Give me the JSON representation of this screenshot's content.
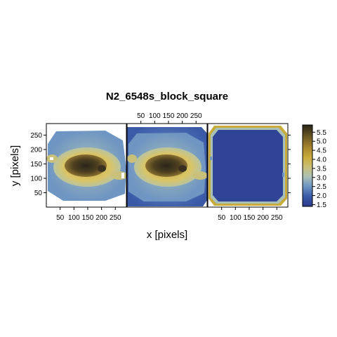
{
  "chart_data": {
    "type": "heatmap",
    "title": "N2_6548s_block_square",
    "xlabel": "x [pixels]",
    "ylabel": "y [pixels]",
    "xlim": [
      0,
      290
    ],
    "ylim": [
      0,
      290
    ],
    "xticks": [
      50,
      100,
      150,
      200,
      250
    ],
    "xtick_labels": [
      "50",
      "100",
      "150",
      "200",
      "250"
    ],
    "yticks": [
      50,
      100,
      150,
      200,
      250
    ],
    "ytick_labels": [
      "50",
      "100",
      "150",
      "200",
      "250"
    ],
    "colorbar": {
      "range": [
        1.4,
        5.9
      ],
      "ticks": [
        1.5,
        2.0,
        2.5,
        3.0,
        3.5,
        4.0,
        4.5,
        5.0,
        5.5
      ],
      "tick_labels": [
        "1.5",
        "2.0",
        "2.5",
        "3.0",
        "3.5",
        "4.0",
        "4.5",
        "5.0",
        "5.5"
      ],
      "colors": [
        "#2b3a8c",
        "#3a5aa8",
        "#6f95c2",
        "#a8c0b8",
        "#c9c07a",
        "#c9ab3a",
        "#a8872c",
        "#6d5a24",
        "#2a2419"
      ]
    },
    "panels": [
      {
        "name": "panel-1",
        "x_ticks_position": "bottom",
        "y_ticks_position": "left"
      },
      {
        "name": "panel-2",
        "x_ticks_position": "top",
        "y_ticks_position": "none"
      },
      {
        "name": "panel-3",
        "x_ticks_position": "bottom",
        "y_ticks_position": "right"
      }
    ]
  }
}
